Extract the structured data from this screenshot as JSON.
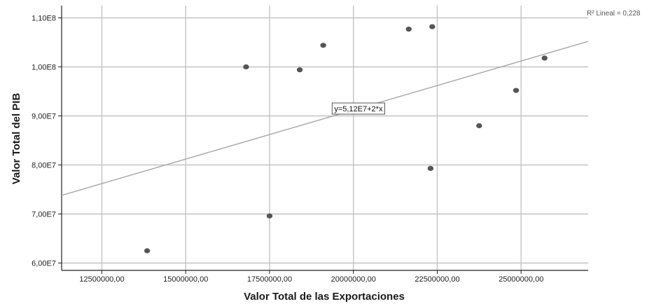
{
  "chart_data": {
    "type": "scatter",
    "title": "",
    "xlabel": "Valor Total de las Exportaciones",
    "ylabel": "Valor Total del PIB",
    "xlim": [
      11300000,
      27000000
    ],
    "ylim": [
      58500000,
      112500000
    ],
    "x_ticks": [
      12500000,
      15000000,
      17500000,
      20000000,
      22500000,
      25000000
    ],
    "x_tick_labels": [
      "12500000,00",
      "15000000,00",
      "17500000,00",
      "20000000,00",
      "22500000,00",
      "25000000,00"
    ],
    "y_ticks": [
      60000000,
      70000000,
      80000000,
      90000000,
      100000000,
      110000000
    ],
    "y_tick_labels": [
      "6,00E7",
      "7,00E7",
      "8,00E7",
      "9,00E7",
      "1,00E8",
      "1,10E8"
    ],
    "grid": true,
    "points": [
      {
        "x": 13850000,
        "y": 62500000
      },
      {
        "x": 16800000,
        "y": 100000000
      },
      {
        "x": 17500000,
        "y": 69600000
      },
      {
        "x": 18400000,
        "y": 99400000
      },
      {
        "x": 19100000,
        "y": 104400000
      },
      {
        "x": 21650000,
        "y": 107700000
      },
      {
        "x": 22300000,
        "y": 79300000
      },
      {
        "x": 22350000,
        "y": 108200000
      },
      {
        "x": 23750000,
        "y": 88000000
      },
      {
        "x": 24850000,
        "y": 95200000
      },
      {
        "x": 25700000,
        "y": 101800000
      }
    ],
    "point_color": "#555555",
    "fit_line": {
      "label": "y=5,12E7+2*x",
      "intercept": 51200000,
      "slope": 2,
      "color": "#a8a8a8"
    },
    "r2_label": "R² Lineal = 0,228"
  }
}
